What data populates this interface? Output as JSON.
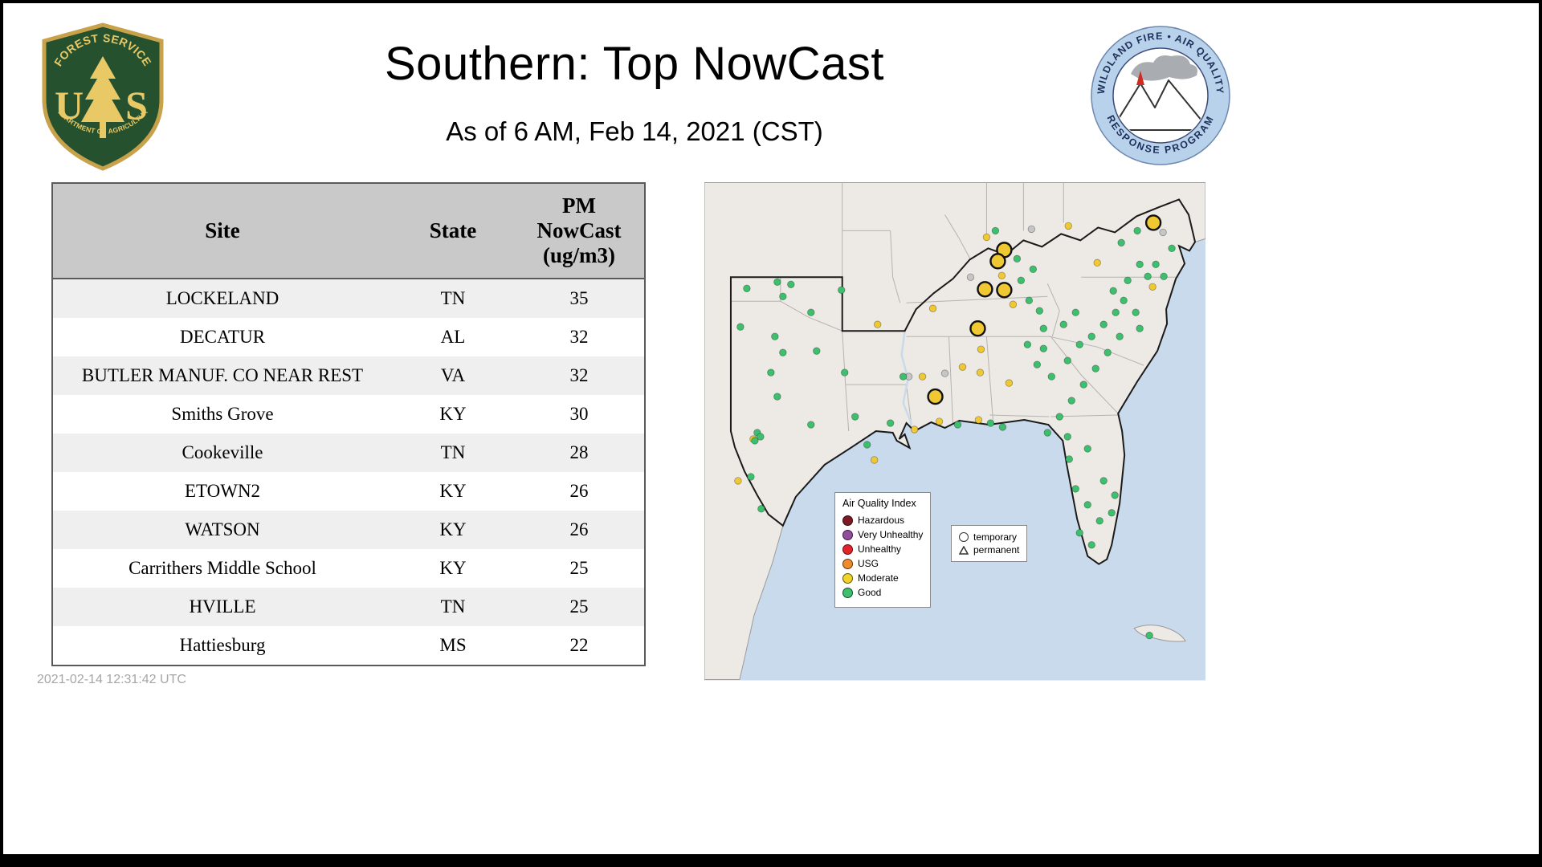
{
  "page": {
    "title": "Southern: Top NowCast",
    "subtitle": "As of  6 AM, Feb 14, 2021 (CST)",
    "timestamp": "2021-02-14 12:31:42 UTC"
  },
  "logos": {
    "usfs": {
      "arc_top": "FOREST SERVICE",
      "letter_u": "U",
      "letter_s": "S",
      "arc_bottom": "DEPARTMENT OF AGRICULTURE"
    },
    "wfaqrp": {
      "arc_top": "WILDLAND FIRE • AIR QUALITY",
      "arc_bottom": "RESPONSE PROGRAM"
    }
  },
  "table": {
    "columns": [
      "Site",
      "State",
      "PM NowCast (ug/m3)"
    ],
    "rows": [
      [
        "LOCKELAND",
        "TN",
        "35"
      ],
      [
        "DECATUR",
        "AL",
        "32"
      ],
      [
        "BUTLER MANUF. CO NEAR REST",
        "VA",
        "32"
      ],
      [
        "Smiths Grove",
        "KY",
        "30"
      ],
      [
        "Cookeville",
        "TN",
        "28"
      ],
      [
        "ETOWN2",
        "KY",
        "26"
      ],
      [
        "WATSON",
        "KY",
        "26"
      ],
      [
        "Carrithers Middle School",
        "KY",
        "25"
      ],
      [
        "HVILLE",
        "TN",
        "25"
      ],
      [
        "Hattiesburg",
        "MS",
        "22"
      ]
    ]
  },
  "map": {
    "aqi_legend": {
      "title": "Air Quality Index",
      "items": [
        {
          "label": "Hazardous",
          "color": "#7e1a24"
        },
        {
          "label": "Very Unhealthy",
          "color": "#8f4d9b"
        },
        {
          "label": "Unhealthy",
          "color": "#e3252b"
        },
        {
          "label": "USG",
          "color": "#ef8b2a"
        },
        {
          "label": "Moderate",
          "color": "#f2d32a"
        },
        {
          "label": "Good",
          "color": "#3dbf6e"
        }
      ]
    },
    "marker_legend": {
      "temporary": "temporary",
      "permanent": "permanent"
    },
    "colors": {
      "good": "#3dbf6e",
      "moderate": "#f0c832",
      "highlight": "#f0c832",
      "nodata": "#c6c6c6",
      "water": "#c9daec",
      "land": "#edeae5"
    },
    "dots": [
      [
        560,
        50,
        "h"
      ],
      [
        374,
        84,
        "h"
      ],
      [
        366,
        98,
        "h"
      ],
      [
        350,
        133,
        "h"
      ],
      [
        374,
        134,
        "h"
      ],
      [
        341,
        182,
        "h"
      ],
      [
        288,
        267,
        "h"
      ],
      [
        454,
        54,
        "m"
      ],
      [
        490,
        100,
        "m"
      ],
      [
        371,
        116,
        "m"
      ],
      [
        352,
        68,
        "m"
      ],
      [
        385,
        152,
        "m"
      ],
      [
        285,
        157,
        "m"
      ],
      [
        345,
        208,
        "m"
      ],
      [
        344,
        237,
        "m"
      ],
      [
        272,
        242,
        "m"
      ],
      [
        216,
        177,
        "m"
      ],
      [
        262,
        308,
        "m"
      ],
      [
        293,
        298,
        "m"
      ],
      [
        342,
        296,
        "m"
      ],
      [
        212,
        346,
        "m"
      ],
      [
        61,
        320,
        "m"
      ],
      [
        42,
        372,
        "m"
      ],
      [
        559,
        130,
        "m"
      ],
      [
        380,
        250,
        "m"
      ],
      [
        322,
        230,
        "m"
      ],
      [
        408,
        58,
        "n"
      ],
      [
        332,
        118,
        "n"
      ],
      [
        300,
        238,
        "n"
      ],
      [
        572,
        62,
        "n"
      ],
      [
        255,
        242,
        "n"
      ],
      [
        53,
        132,
        "g"
      ],
      [
        91,
        124,
        "g"
      ],
      [
        108,
        127,
        "g"
      ],
      [
        98,
        142,
        "g"
      ],
      [
        171,
        134,
        "g"
      ],
      [
        133,
        162,
        "g"
      ],
      [
        88,
        192,
        "g"
      ],
      [
        98,
        212,
        "g"
      ],
      [
        83,
        237,
        "g"
      ],
      [
        91,
        267,
        "g"
      ],
      [
        175,
        237,
        "g"
      ],
      [
        188,
        292,
        "g"
      ],
      [
        133,
        302,
        "g"
      ],
      [
        66,
        312,
        "g"
      ],
      [
        70,
        317,
        "g"
      ],
      [
        63,
        322,
        "g"
      ],
      [
        203,
        327,
        "g"
      ],
      [
        58,
        367,
        "g"
      ],
      [
        71,
        407,
        "g"
      ],
      [
        45,
        180,
        "g"
      ],
      [
        140,
        210,
        "g"
      ],
      [
        248,
        242,
        "g"
      ],
      [
        232,
        300,
        "g"
      ],
      [
        316,
        302,
        "g"
      ],
      [
        357,
        300,
        "g"
      ],
      [
        372,
        305,
        "g"
      ],
      [
        395,
        122,
        "g"
      ],
      [
        405,
        147,
        "g"
      ],
      [
        418,
        160,
        "g"
      ],
      [
        363,
        60,
        "g"
      ],
      [
        390,
        95,
        "g"
      ],
      [
        410,
        108,
        "g"
      ],
      [
        423,
        182,
        "g"
      ],
      [
        403,
        202,
        "g"
      ],
      [
        423,
        207,
        "g"
      ],
      [
        415,
        227,
        "g"
      ],
      [
        433,
        242,
        "g"
      ],
      [
        453,
        222,
        "g"
      ],
      [
        468,
        202,
        "g"
      ],
      [
        483,
        192,
        "g"
      ],
      [
        498,
        177,
        "g"
      ],
      [
        513,
        162,
        "g"
      ],
      [
        523,
        147,
        "g"
      ],
      [
        538,
        162,
        "g"
      ],
      [
        543,
        182,
        "g"
      ],
      [
        518,
        192,
        "g"
      ],
      [
        503,
        212,
        "g"
      ],
      [
        488,
        232,
        "g"
      ],
      [
        473,
        252,
        "g"
      ],
      [
        458,
        272,
        "g"
      ],
      [
        443,
        292,
        "g"
      ],
      [
        463,
        162,
        "g"
      ],
      [
        448,
        177,
        "g"
      ],
      [
        543,
        102,
        "g"
      ],
      [
        553,
        117,
        "g"
      ],
      [
        563,
        102,
        "g"
      ],
      [
        573,
        117,
        "g"
      ],
      [
        583,
        82,
        "g"
      ],
      [
        528,
        122,
        "g"
      ],
      [
        510,
        135,
        "g"
      ],
      [
        428,
        312,
        "g"
      ],
      [
        453,
        317,
        "g"
      ],
      [
        478,
        332,
        "g"
      ],
      [
        463,
        382,
        "g"
      ],
      [
        478,
        402,
        "g"
      ],
      [
        493,
        422,
        "g"
      ],
      [
        468,
        437,
        "g"
      ],
      [
        483,
        452,
        "g"
      ],
      [
        508,
        412,
        "g"
      ],
      [
        498,
        372,
        "g"
      ],
      [
        512,
        390,
        "g"
      ],
      [
        455,
        345,
        "g"
      ],
      [
        540,
        60,
        "g"
      ],
      [
        520,
        75,
        "g"
      ],
      [
        555,
        565,
        "g"
      ]
    ]
  }
}
